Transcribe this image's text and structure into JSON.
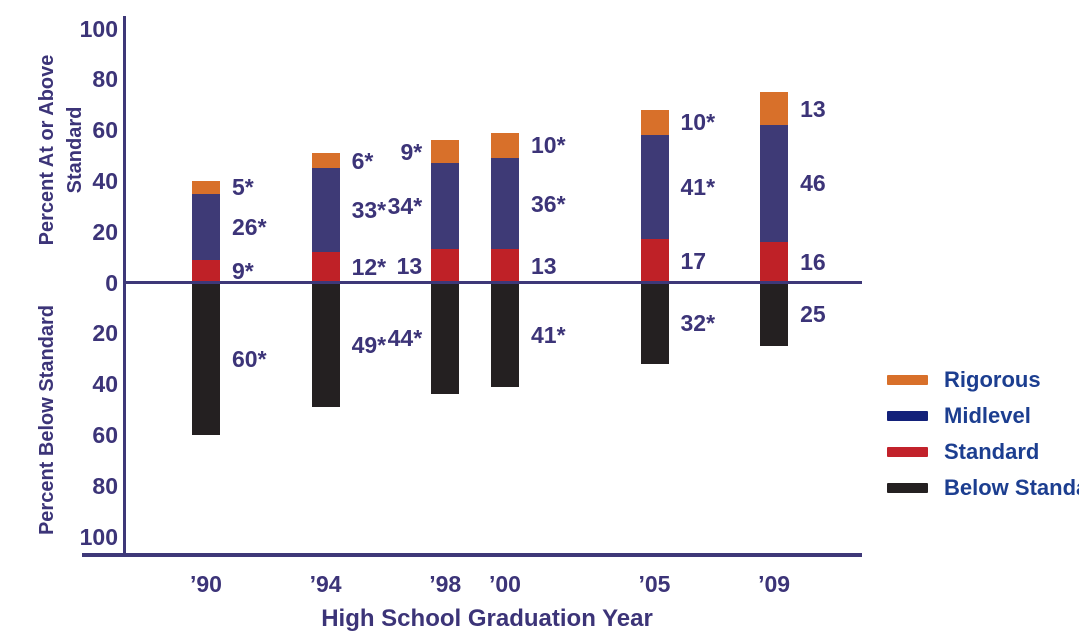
{
  "chart_data": {
    "type": "bar",
    "variant": "diverging-stacked",
    "xlabel": "High School Graduation Year",
    "ylabel_top": "Percent At or Above Standard",
    "ylabel_bottom": "Percent Below Standard",
    "y_ticks_above": [
      100,
      80,
      60,
      40,
      20,
      0
    ],
    "y_ticks_below": [
      20,
      40,
      60,
      80,
      100
    ],
    "y_axis_range_above": [
      0,
      100
    ],
    "y_axis_range_below": [
      0,
      100
    ],
    "categories": [
      "’90",
      "’94",
      "’98",
      "’00",
      "’05",
      "’09"
    ],
    "years": [
      1990,
      1994,
      1998,
      2000,
      2005,
      2009
    ],
    "label_side": [
      "right",
      "right",
      "left",
      "right",
      "right",
      "right"
    ],
    "series_above": [
      {
        "name": "Standard",
        "color": "#bf2127",
        "values": [
          9,
          12,
          13,
          13,
          17,
          16
        ],
        "labels": [
          "9*",
          "12*",
          "13",
          "13",
          "17",
          "16"
        ]
      },
      {
        "name": "Midlevel",
        "color": "#3e3a76",
        "values": [
          26,
          33,
          34,
          36,
          41,
          46
        ],
        "labels": [
          "26*",
          "33*",
          "34*",
          "36*",
          "41*",
          "46"
        ]
      },
      {
        "name": "Rigorous",
        "color": "#d8702a",
        "values": [
          5,
          6,
          9,
          10,
          10,
          13
        ],
        "labels": [
          "5*",
          "6*",
          "9*",
          "10*",
          "10*",
          "13"
        ]
      }
    ],
    "series_below": {
      "name": "Below Standard",
      "color": "#242021",
      "values": [
        60,
        49,
        44,
        41,
        32,
        25
      ],
      "labels": [
        "60*",
        "49*",
        "44*",
        "41*",
        "32*",
        "25"
      ]
    },
    "legend": [
      {
        "label": "Rigorous",
        "color": "#d8702a"
      },
      {
        "label": "Midlevel",
        "color": "#13217a"
      },
      {
        "label": "Standard",
        "color": "#c2222b"
      },
      {
        "label": "Below Standard",
        "color": "#242021"
      }
    ],
    "grid": false,
    "legend_position": "right"
  },
  "colors": {
    "axis_line": "#3e3878",
    "tick_text": "#3c3478",
    "value_text": "#3c3478",
    "legend_text": "#1c3e90",
    "background": "#ffffff"
  }
}
